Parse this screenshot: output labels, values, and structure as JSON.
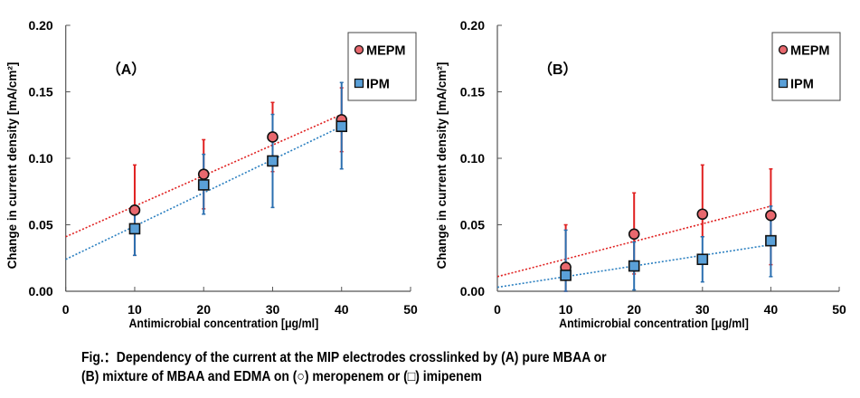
{
  "chart_data": [
    {
      "type": "scatter",
      "panel_label": "（A）",
      "xlabel": "Antimicrobial concentration [μg/ml]",
      "ylabel": "Change in current density [mA/cm²]",
      "xlim": [
        0,
        50
      ],
      "ylim": [
        0,
        0.2
      ],
      "xticks": [
        "0",
        "10",
        "20",
        "30",
        "40",
        "50"
      ],
      "yticks": [
        "0.00",
        "0.05",
        "0.10",
        "0.15",
        "0.20"
      ],
      "legend_position": "top-right",
      "series": [
        {
          "name": "MEPM",
          "marker": "circle",
          "color": "#e8686e",
          "err_color": "#e02020",
          "trend_color": "#e02020",
          "x": [
            10,
            20,
            30,
            40
          ],
          "y": [
            0.061,
            0.088,
            0.116,
            0.129
          ],
          "err_low": [
            0.027,
            0.062,
            0.09,
            0.105
          ],
          "err_high": [
            0.095,
            0.114,
            0.142,
            0.153
          ],
          "trend": [
            0.041,
            0.133
          ]
        },
        {
          "name": "IPM",
          "marker": "square",
          "color": "#5aa0d8",
          "err_color": "#2a6fb0",
          "trend_color": "#2a7fc0",
          "x": [
            10,
            20,
            30,
            40
          ],
          "y": [
            0.047,
            0.08,
            0.098,
            0.124
          ],
          "err_low": [
            0.027,
            0.058,
            0.063,
            0.092
          ],
          "err_high": [
            0.062,
            0.103,
            0.133,
            0.157
          ],
          "trend": [
            0.024,
            0.124
          ]
        }
      ]
    },
    {
      "type": "scatter",
      "panel_label": "（B）",
      "xlabel": "Antimicrobial concentration [μg/ml]",
      "ylabel": "Change in current density [mA/cm²]",
      "xlim": [
        0,
        50
      ],
      "ylim": [
        0,
        0.2
      ],
      "xticks": [
        "0",
        "10",
        "20",
        "30",
        "40",
        "50"
      ],
      "yticks": [
        "0.00",
        "0.05",
        "0.10",
        "0.15",
        "0.20"
      ],
      "legend_position": "top-right",
      "series": [
        {
          "name": "MEPM",
          "marker": "circle",
          "color": "#e8686e",
          "err_color": "#e02020",
          "trend_color": "#e02020",
          "x": [
            10,
            20,
            30,
            40
          ],
          "y": [
            0.018,
            0.043,
            0.058,
            0.057
          ],
          "err_low": [
            0.0,
            0.013,
            0.041,
            0.02
          ],
          "err_high": [
            0.05,
            0.074,
            0.095,
            0.092
          ],
          "trend": [
            0.011,
            0.064
          ]
        },
        {
          "name": "IPM",
          "marker": "square",
          "color": "#5aa0d8",
          "err_color": "#2a6fb0",
          "trend_color": "#2a7fc0",
          "x": [
            10,
            20,
            30,
            40
          ],
          "y": [
            0.012,
            0.019,
            0.024,
            0.038
          ],
          "err_low": [
            0.0,
            0.001,
            0.007,
            0.011
          ],
          "err_high": [
            0.046,
            0.037,
            0.041,
            0.064
          ],
          "trend": [
            0.003,
            0.035
          ]
        }
      ]
    }
  ],
  "caption": {
    "line1": "Fig.：Dependency of the current at the MIP electrodes crosslinked by (A) pure MBAA or",
    "line2": "(B) mixture of MBAA and EDMA on (○) meropenem or (□) imipenem"
  }
}
